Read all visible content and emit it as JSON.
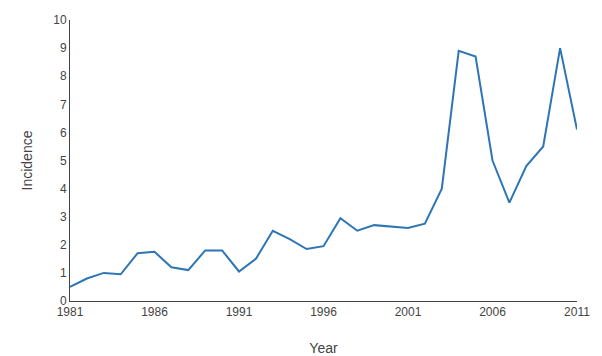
{
  "chart_data": {
    "type": "line",
    "x": [
      1981,
      1982,
      1983,
      1984,
      1985,
      1986,
      1987,
      1988,
      1989,
      1990,
      1991,
      1992,
      1993,
      1994,
      1995,
      1996,
      1997,
      1998,
      1999,
      2000,
      2001,
      2002,
      2003,
      2004,
      2005,
      2006,
      2007,
      2008,
      2009,
      2010,
      2011
    ],
    "values": [
      0.5,
      0.8,
      1.0,
      0.95,
      1.7,
      1.75,
      1.2,
      1.1,
      1.8,
      1.8,
      1.05,
      1.5,
      2.5,
      2.2,
      1.85,
      1.95,
      2.95,
      2.5,
      2.7,
      2.65,
      2.6,
      2.75,
      4.0,
      8.9,
      8.7,
      5.0,
      3.5,
      4.8,
      5.5,
      9.0,
      6.1
    ],
    "color": "#2E75B6",
    "xlabel": "Year",
    "ylabel": "Incidence",
    "xlim": [
      1981,
      2011
    ],
    "ylim": [
      0,
      10
    ],
    "xticks": [
      1981,
      1986,
      1991,
      1996,
      2001,
      2006,
      2011
    ],
    "yticks": [
      0,
      1,
      2,
      3,
      4,
      5,
      6,
      7,
      8,
      9,
      10
    ],
    "grid": false
  }
}
